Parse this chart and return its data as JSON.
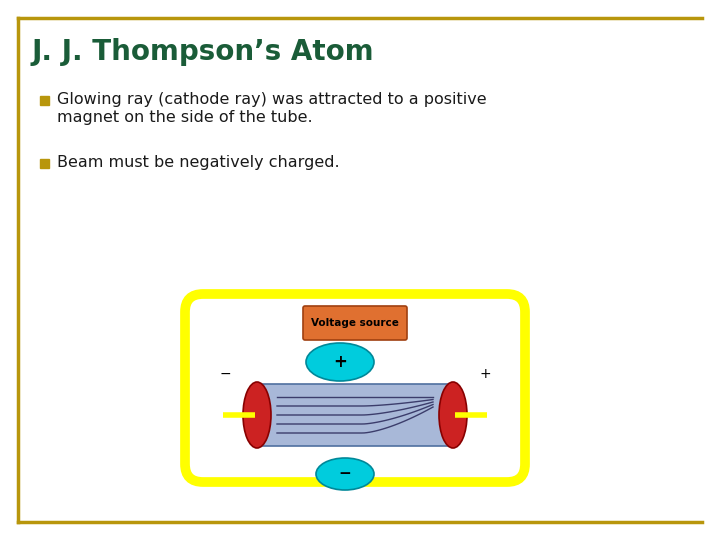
{
  "title": "J. J. Thompson’s Atom",
  "title_color": "#1a5c38",
  "title_fontsize": 20,
  "border_color": "#b8960c",
  "bullet_color": "#b8960c",
  "bullet1_line1": "Glowing ray (cathode ray) was attracted to a positive",
  "bullet1_line2": "magnet on the side of the tube.",
  "bullet2": "Beam must be negatively charged.",
  "text_color": "#1a1a1a",
  "text_fontsize": 11.5,
  "bg_color": "#ffffff",
  "tube_fill": "#a8b8d8",
  "tube_outline": "#5070a0",
  "cathode_color": "#cc2222",
  "wire_color": "#ffff00",
  "voltage_box_color": "#e07030",
  "voltage_text": "Voltage source",
  "magnet_color": "#00ccdd",
  "beam_color": "#303060"
}
